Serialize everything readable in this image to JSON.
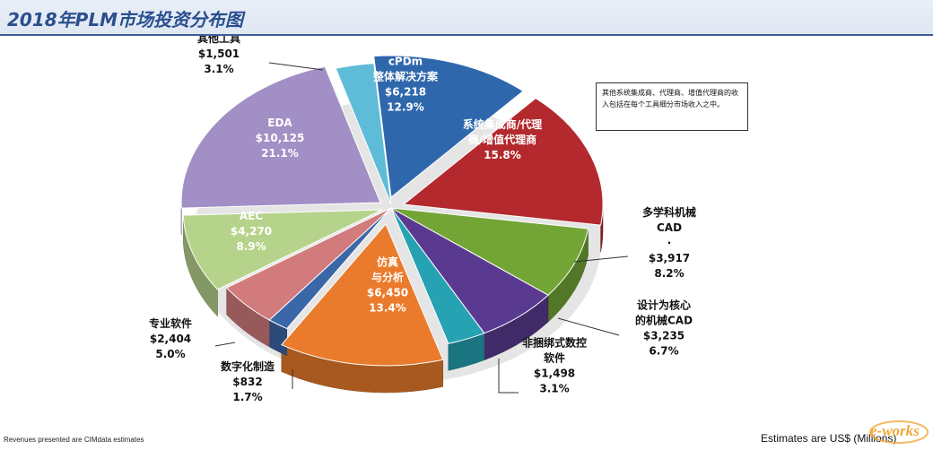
{
  "title": "2018年PLM市场投资分布图",
  "note": "其他系统集成商、代理商、增值代理商的收入包括在每个工具细分市场收入之中。",
  "footer_left": "Revenues presented are CIMdata estimates",
  "footer_right": "Estimates are US$ (Millions)",
  "logo_text": "e-works",
  "chart_data": {
    "type": "pie",
    "unit": "US$ (Millions)",
    "slices": [
      {
        "label": "cPDm 整体解决方案",
        "value_label": "$6,218",
        "value": 6218,
        "pct": 12.9,
        "color": "#2f67ad"
      },
      {
        "label": "系统集成商/代理商/增值代理商",
        "value_label": "",
        "value": null,
        "pct": 15.8,
        "color": "#b3292d"
      },
      {
        "label": "多学科机械 CAD",
        "value_label": "$3,917",
        "value": 3917,
        "pct": 8.2,
        "color": "#72a536"
      },
      {
        "label": "设计为核心的机械CAD",
        "value_label": "$3,235",
        "value": 3235,
        "pct": 6.7,
        "color": "#5a3a91"
      },
      {
        "label": "非捆绑式数控软件",
        "value_label": "$1,498",
        "value": 1498,
        "pct": 3.1,
        "color": "#26a2b3"
      },
      {
        "label": "仿真与分析",
        "value_label": "$6,450",
        "value": 6450,
        "pct": 13.4,
        "color": "#ea7b2c"
      },
      {
        "label": "数字化制造",
        "value_label": "$832",
        "value": 832,
        "pct": 1.7,
        "color": "#3a67a8"
      },
      {
        "label": "专业软件",
        "value_label": "$2,404",
        "value": 2404,
        "pct": 5.0,
        "color": "#d27b7c"
      },
      {
        "label": "AEC",
        "value_label": "$4,270",
        "value": 4270,
        "pct": 8.9,
        "color": "#b6d38b"
      },
      {
        "label": "EDA",
        "value_label": "$10,125",
        "value": 10125,
        "pct": 21.1,
        "color": "#a28fc5"
      },
      {
        "label": "其他工具",
        "value_label": "$1,501",
        "value": 1501,
        "pct": 3.1,
        "color": "#5fbcd8"
      }
    ],
    "labels": [
      {
        "slice": 0,
        "lines": [
          "cPDm",
          "整体解决方案",
          "$6,218",
          "12.9%"
        ]
      },
      {
        "slice": 1,
        "lines": [
          "系统集成商/代理",
          "商/增值代理商",
          "15.8%"
        ]
      },
      {
        "slice": 2,
        "lines": [
          "多学科机械",
          "CAD",
          "·",
          "$3,917",
          "8.2%"
        ]
      },
      {
        "slice": 3,
        "lines": [
          "设计为核心",
          "的机械CAD",
          "$3,235",
          "6.7%"
        ]
      },
      {
        "slice": 4,
        "lines": [
          "非捆绑式数控",
          "软件",
          "$1,498",
          "3.1%"
        ]
      },
      {
        "slice": 5,
        "lines": [
          "仿真",
          "与分析",
          "$6,450",
          "13.4%"
        ]
      },
      {
        "slice": 6,
        "lines": [
          "数字化制造",
          "$832",
          "1.7%"
        ]
      },
      {
        "slice": 7,
        "lines": [
          "专业软件",
          "$2,404",
          "5.0%"
        ]
      },
      {
        "slice": 8,
        "lines": [
          "AEC",
          "$4,270",
          "8.9%"
        ]
      },
      {
        "slice": 9,
        "lines": [
          "EDA",
          "$10,125",
          "21.1%"
        ]
      },
      {
        "slice": 10,
        "lines": [
          "其他工具",
          "$1,501",
          "3.1%"
        ]
      }
    ]
  }
}
